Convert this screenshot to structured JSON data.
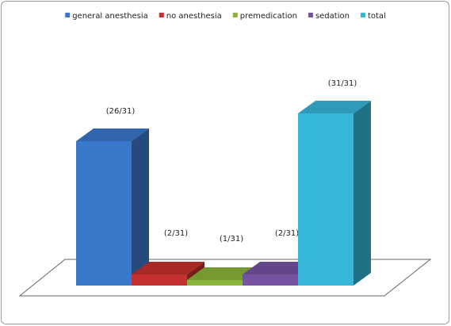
{
  "chart_data": {
    "type": "bar3d",
    "categories": [
      "general anesthesia",
      "no anesthesia",
      "premedication",
      "sedation",
      "total"
    ],
    "values": [
      26,
      2,
      1,
      2,
      31
    ],
    "value_labels": [
      "(26/31)",
      "(2/31)",
      "(1/31)",
      "(2/31)",
      "(31/31)"
    ],
    "colors": [
      "#3a78cc",
      "#c3302d",
      "#8cb43a",
      "#7554a2",
      "#36b6d8"
    ],
    "legend": "top"
  }
}
